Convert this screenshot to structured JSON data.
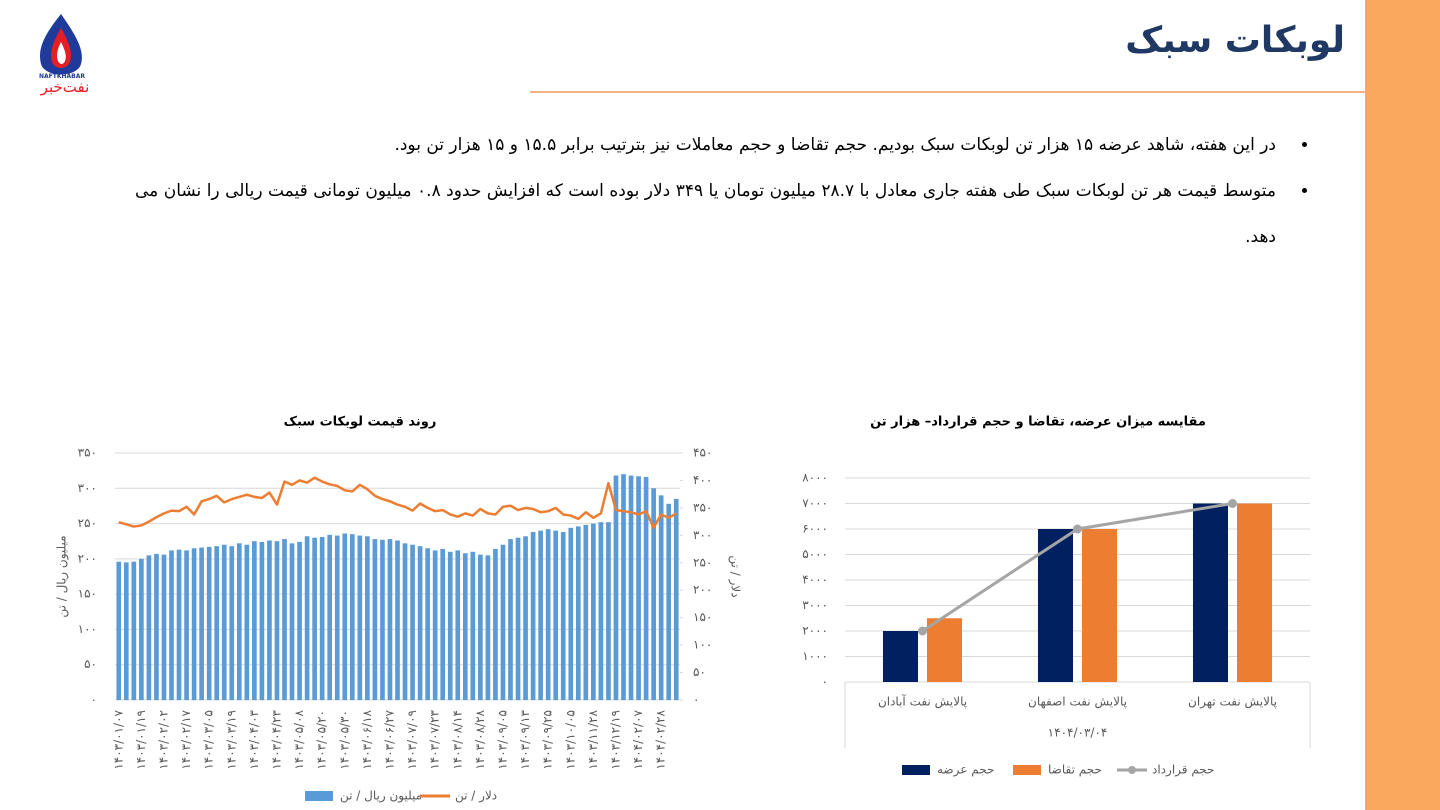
{
  "header": {
    "title": "لوبکات سبک"
  },
  "logo": {
    "text_en": "NAFTKHABAR",
    "text_fa": "نفت‌خبر"
  },
  "bullets": [
    "در این هفته، شاهد عرضه ۱۵ هزار تن لوبکات سبک بودیم. حجم تقاضا و حجم معاملات نیز بترتیب برابر ۱۵.۵ و ۱۵ هزار تن بود.",
    "متوسط قیمت هر تن لوبکات سبک طی هفته جاری معادل با ۲۸.۷ میلیون تومان یا ۳۴۹ دلار بوده است که افزایش حدود ۰.۸ میلیون تومانی قیمت ریالی را نشان می دهد."
  ],
  "chart_data": [
    {
      "type": "combo",
      "title": "روند قیمت لوبکات سبک",
      "y_label": "میلیون ریال / تن",
      "y2_label": "دلار / تن",
      "x_label_rotation": -90,
      "grid": true,
      "legend": "bottom",
      "categories": [
        "۱۴۰۳/۰۱/۰۷",
        null,
        null,
        "۱۴۰۳/۰۱/۱۹",
        null,
        null,
        "۱۴۰۳/۰۲/۰۲",
        null,
        null,
        "۱۴۰۳/۰۲/۱۷",
        null,
        null,
        "۱۴۰۳/۰۳/۰۵",
        null,
        null,
        "۱۴۰۳/۰۳/۱۹",
        null,
        null,
        "۱۴۰۳/۰۴/۰۳",
        null,
        null,
        "۱۴۰۳/۰۴/۲۳",
        null,
        null,
        "۱۴۰۳/۰۵/۰۸",
        null,
        null,
        "۱۴۰۳/۰۵/۲۰",
        null,
        null,
        "۱۴۰۳/۰۵/۳۰",
        null,
        null,
        "۱۴۰۳/۰۶/۱۸",
        null,
        null,
        "۱۴۰۳/۰۶/۲۷",
        null,
        null,
        "۱۴۰۳/۰۷/۰۹",
        null,
        null,
        "۱۴۰۳/۰۷/۲۳",
        null,
        null,
        "۱۴۰۳/۰۸/۱۴",
        null,
        null,
        "۱۴۰۳/۰۸/۲۸",
        null,
        null,
        "۱۴۰۳/۰۹/۰۵",
        null,
        null,
        "۱۴۰۳/۰۹/۱۳",
        null,
        null,
        "۱۴۰۳/۰۹/۲۵",
        null,
        null,
        "۱۴۰۳/۱۰/۰۵",
        null,
        null,
        "۱۴۰۳/۱۱/۲۸",
        null,
        null,
        "۱۴۰۳/۱۲/۱۹",
        null,
        null,
        "۱۴۰۴/۰۲/۰۷",
        null,
        null,
        "۱۴۰۴/۰۲/۲۸",
        null,
        null
      ],
      "series": [
        {
          "name": "میلیون ریال / تن",
          "type": "bar",
          "color": "#5b9bd5",
          "values": [
            196,
            195,
            196,
            200,
            205,
            207,
            206,
            212,
            213,
            212,
            215,
            216,
            217,
            218,
            220,
            218,
            222,
            220,
            225,
            224,
            226,
            225,
            228,
            222,
            224,
            232,
            230,
            231,
            234,
            233,
            236,
            235,
            233,
            232,
            228,
            227,
            228,
            226,
            222,
            220,
            218,
            215,
            212,
            214,
            210,
            212,
            208,
            210,
            206,
            205,
            214,
            220,
            228,
            230,
            232,
            238,
            240,
            242,
            240,
            238,
            244,
            246,
            248,
            250,
            252,
            252,
            318,
            320,
            318,
            317,
            316,
            300,
            290,
            278,
            285
          ]
        },
        {
          "name": "دلار / تن",
          "type": "line",
          "axis": "y2",
          "color": "#ed7d31",
          "values": [
            324,
            320,
            316,
            318,
            325,
            333,
            340,
            345,
            344,
            352,
            338,
            362,
            366,
            372,
            360,
            366,
            370,
            374,
            370,
            368,
            378,
            356,
            398,
            392,
            400,
            396,
            405,
            398,
            393,
            390,
            382,
            380,
            392,
            384,
            372,
            366,
            362,
            356,
            352,
            345,
            358,
            350,
            344,
            346,
            338,
            334,
            340,
            336,
            348,
            340,
            338,
            352,
            354,
            346,
            350,
            348,
            342,
            344,
            350,
            338,
            336,
            330,
            342,
            332,
            340,
            395,
            346,
            344,
            342,
            338,
            344,
            314,
            338,
            332,
            340
          ]
        }
      ],
      "ylim": [
        0,
        350
      ],
      "yticks": [
        {
          "value": 0,
          "label": "۰"
        },
        {
          "value": 50,
          "label": "۵۰"
        },
        {
          "value": 100,
          "label": "۱۰۰"
        },
        {
          "value": 150,
          "label": "۱۵۰"
        },
        {
          "value": 200,
          "label": "۲۰۰"
        },
        {
          "value": 250,
          "label": "۲۵۰"
        },
        {
          "value": 300,
          "label": "۳۰۰"
        },
        {
          "value": 350,
          "label": "۳۵۰"
        }
      ],
      "y2lim": [
        0,
        450
      ],
      "y2ticks": [
        {
          "value": 0,
          "label": "۰"
        },
        {
          "value": 50,
          "label": "۵۰"
        },
        {
          "value": 100,
          "label": "۱۰۰"
        },
        {
          "value": 150,
          "label": "۱۵۰"
        },
        {
          "value": 200,
          "label": "۲۰۰"
        },
        {
          "value": 250,
          "label": "۲۵۰"
        },
        {
          "value": 300,
          "label": "۳۰۰"
        },
        {
          "value": 350,
          "label": "۳۵۰"
        },
        {
          "value": 400,
          "label": "۴۰۰"
        },
        {
          "value": 450,
          "label": "۴۵۰"
        }
      ]
    },
    {
      "type": "combo",
      "title": "مقایسه میزان عرضه، تقاضا و حجم قرارداد– هزار تن",
      "grid": true,
      "legend": "bottom",
      "group_label": "۱۴۰۴/۰۳/۰۴",
      "categories": [
        "پالایش نفت آبادان",
        "پالایش نفت اصفهان",
        "پالایش نفت تهران"
      ],
      "series": [
        {
          "name": "حجم عرضه",
          "type": "bar",
          "color": "#002060",
          "values": [
            2000,
            6000,
            7000
          ]
        },
        {
          "name": "حجم تقاضا",
          "type": "bar",
          "color": "#ed7d31",
          "values": [
            2500,
            6000,
            7000
          ]
        },
        {
          "name": "حجم قرارداد",
          "type": "line",
          "color": "#a5a5a5",
          "markers": true,
          "values": [
            2000,
            6000,
            7000
          ]
        }
      ],
      "ylim": [
        0,
        8000
      ],
      "yticks": [
        {
          "value": 0,
          "label": "۰"
        },
        {
          "value": 1000,
          "label": "۱۰۰۰"
        },
        {
          "value": 2000,
          "label": "۲۰۰۰"
        },
        {
          "value": 3000,
          "label": "۳۰۰۰"
        },
        {
          "value": 4000,
          "label": "۴۰۰۰"
        },
        {
          "value": 5000,
          "label": "۵۰۰۰"
        },
        {
          "value": 6000,
          "label": "۶۰۰۰"
        },
        {
          "value": 7000,
          "label": "۷۰۰۰"
        },
        {
          "value": 8000,
          "label": "۸۰۰۰"
        }
      ]
    }
  ]
}
